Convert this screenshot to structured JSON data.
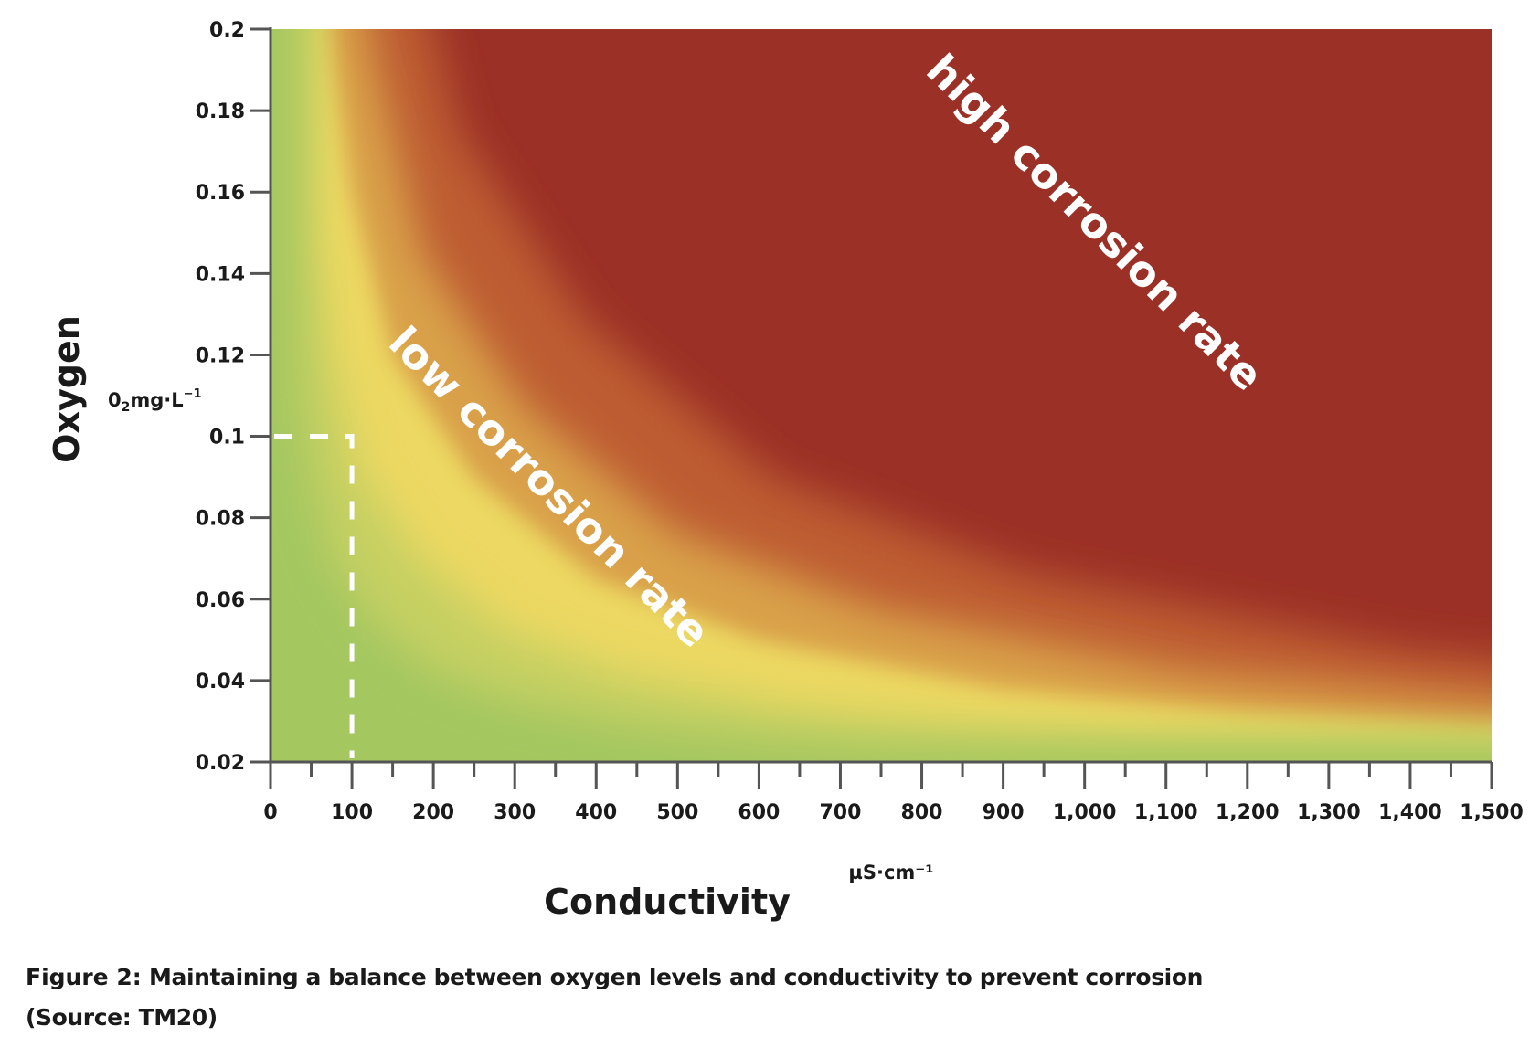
{
  "chart_data": {
    "type": "heatmap",
    "title": "",
    "xlabel": "Conductivity",
    "xunit": "µS·cm⁻¹",
    "ylabel": "Oxygen",
    "yunit_main": "0",
    "yunit_sub": "2",
    "yunit_rest": "mg·L",
    "yunit_sup": "−1",
    "xlim": [
      0,
      1500
    ],
    "ylim": [
      0.02,
      0.2
    ],
    "x_ticks": [
      0,
      100,
      200,
      300,
      400,
      500,
      600,
      700,
      800,
      900,
      1000,
      1100,
      1200,
      1300,
      1400,
      1500
    ],
    "x_tick_labels": [
      "0",
      "100",
      "200",
      "300",
      "400",
      "500",
      "600",
      "700",
      "800",
      "900",
      "1,000",
      "1,100",
      "1,200",
      "1,300",
      "1,400",
      "1,500"
    ],
    "x_minor_ticks": [
      50,
      150,
      250,
      350,
      450,
      550,
      650,
      750,
      850,
      950,
      1050,
      1150,
      1250,
      1350,
      1450
    ],
    "y_ticks": [
      0.02,
      0.04,
      0.06,
      0.08,
      0.1,
      0.12,
      0.14,
      0.16,
      0.18,
      0.2
    ],
    "y_tick_labels": [
      "0.02",
      "0.04",
      "0.06",
      "0.08",
      "0.1",
      "0.12",
      "0.14",
      "0.16",
      "0.18",
      "0.2"
    ],
    "grid": false,
    "legend": "none",
    "colormap": {
      "description": "corrosion rate, green (low) → yellow → orange → dark red (high)",
      "stops": [
        "#a4c761",
        "#c6d062",
        "#ecd862",
        "#d9a04a",
        "#bd5c30",
        "#9b3026"
      ]
    },
    "boundary_curve": {
      "description": "yellow transition band (oxygen × conductivity ≈ constant)",
      "points": [
        {
          "x": 70,
          "y": 0.2
        },
        {
          "x": 100,
          "y": 0.16
        },
        {
          "x": 150,
          "y": 0.12
        },
        {
          "x": 250,
          "y": 0.09
        },
        {
          "x": 400,
          "y": 0.065
        },
        {
          "x": 600,
          "y": 0.05
        },
        {
          "x": 900,
          "y": 0.038
        },
        {
          "x": 1200,
          "y": 0.032
        },
        {
          "x": 1500,
          "y": 0.028
        }
      ]
    },
    "reference_box": {
      "x_max": 100,
      "y_max": 0.1,
      "style": "white dashed"
    },
    "annotations": [
      {
        "text": "low corrosion rate",
        "x": 330,
        "y": 0.085,
        "rotation_deg": 45
      },
      {
        "text": "high corrosion rate",
        "x": 1000,
        "y": 0.15,
        "rotation_deg": 45
      }
    ]
  },
  "caption": {
    "lead": "Figure 2:",
    "text": " Maintaining a balance between oxygen levels and conductivity to prevent corrosion",
    "source": "(Source: TM20)"
  }
}
